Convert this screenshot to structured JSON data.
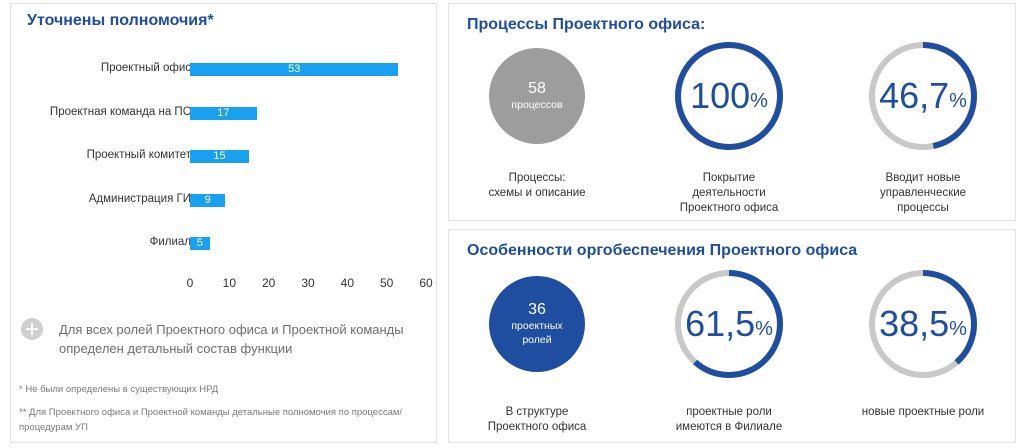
{
  "left": {
    "title": "Уточнены полномочия*",
    "note": "Для всех ролей Проектного офиса и Проектной команды  определен детальный состав функции",
    "footnote1": "* Не были определены в существующих НРД",
    "footnote2": "** Для Проектного офиса и Проектной команды детальные полномочия по процессам/процедурам УП"
  },
  "chart_data": {
    "type": "bar",
    "orientation": "horizontal",
    "categories": [
      "Проектный офис",
      "Проектная команда на ПС",
      "Проектный комитет",
      "Администрация ГИ",
      "Филиал"
    ],
    "values": [
      53,
      17,
      15,
      9,
      5
    ],
    "xlim": [
      0,
      60
    ],
    "xticks": [
      0,
      10,
      20,
      30,
      40,
      50,
      60
    ],
    "bar_color": "#1aa0f0",
    "grid": false
  },
  "processes": {
    "title": "Процессы Проектного офиса:",
    "items": [
      {
        "kind": "disc",
        "color": "#9d9d9d",
        "number": "58",
        "unit": "процессов",
        "caption": "Процессы:\nсхемы и описание"
      },
      {
        "kind": "ring",
        "value": "100",
        "percent": 100,
        "suffix": "%",
        "caption": "Покрытие\nдеятельности\nПроектного офиса"
      },
      {
        "kind": "ring",
        "value": "46,7",
        "percent": 46.7,
        "suffix": "%",
        "caption": "Вводит новые\nуправленческие\nпроцессы"
      }
    ]
  },
  "org": {
    "title": "Особенности оргобеспечения Проектного офиса",
    "items": [
      {
        "kind": "disc",
        "color": "#1f4ea0",
        "number": "36",
        "unit": "проектных\nролей",
        "caption": "В структуре\nПроектного офиса"
      },
      {
        "kind": "ring",
        "value": "61,5",
        "percent": 61.5,
        "suffix": "%",
        "caption": "проектные роли\nимеются в Филиале"
      },
      {
        "kind": "ring",
        "value": "38,5",
        "percent": 38.5,
        "suffix": "%",
        "caption": "новые проектные роли"
      }
    ]
  },
  "colors": {
    "accent": "#1f4ea0",
    "ring_track": "#c8c8c8",
    "disc_gray": "#9d9d9d"
  }
}
